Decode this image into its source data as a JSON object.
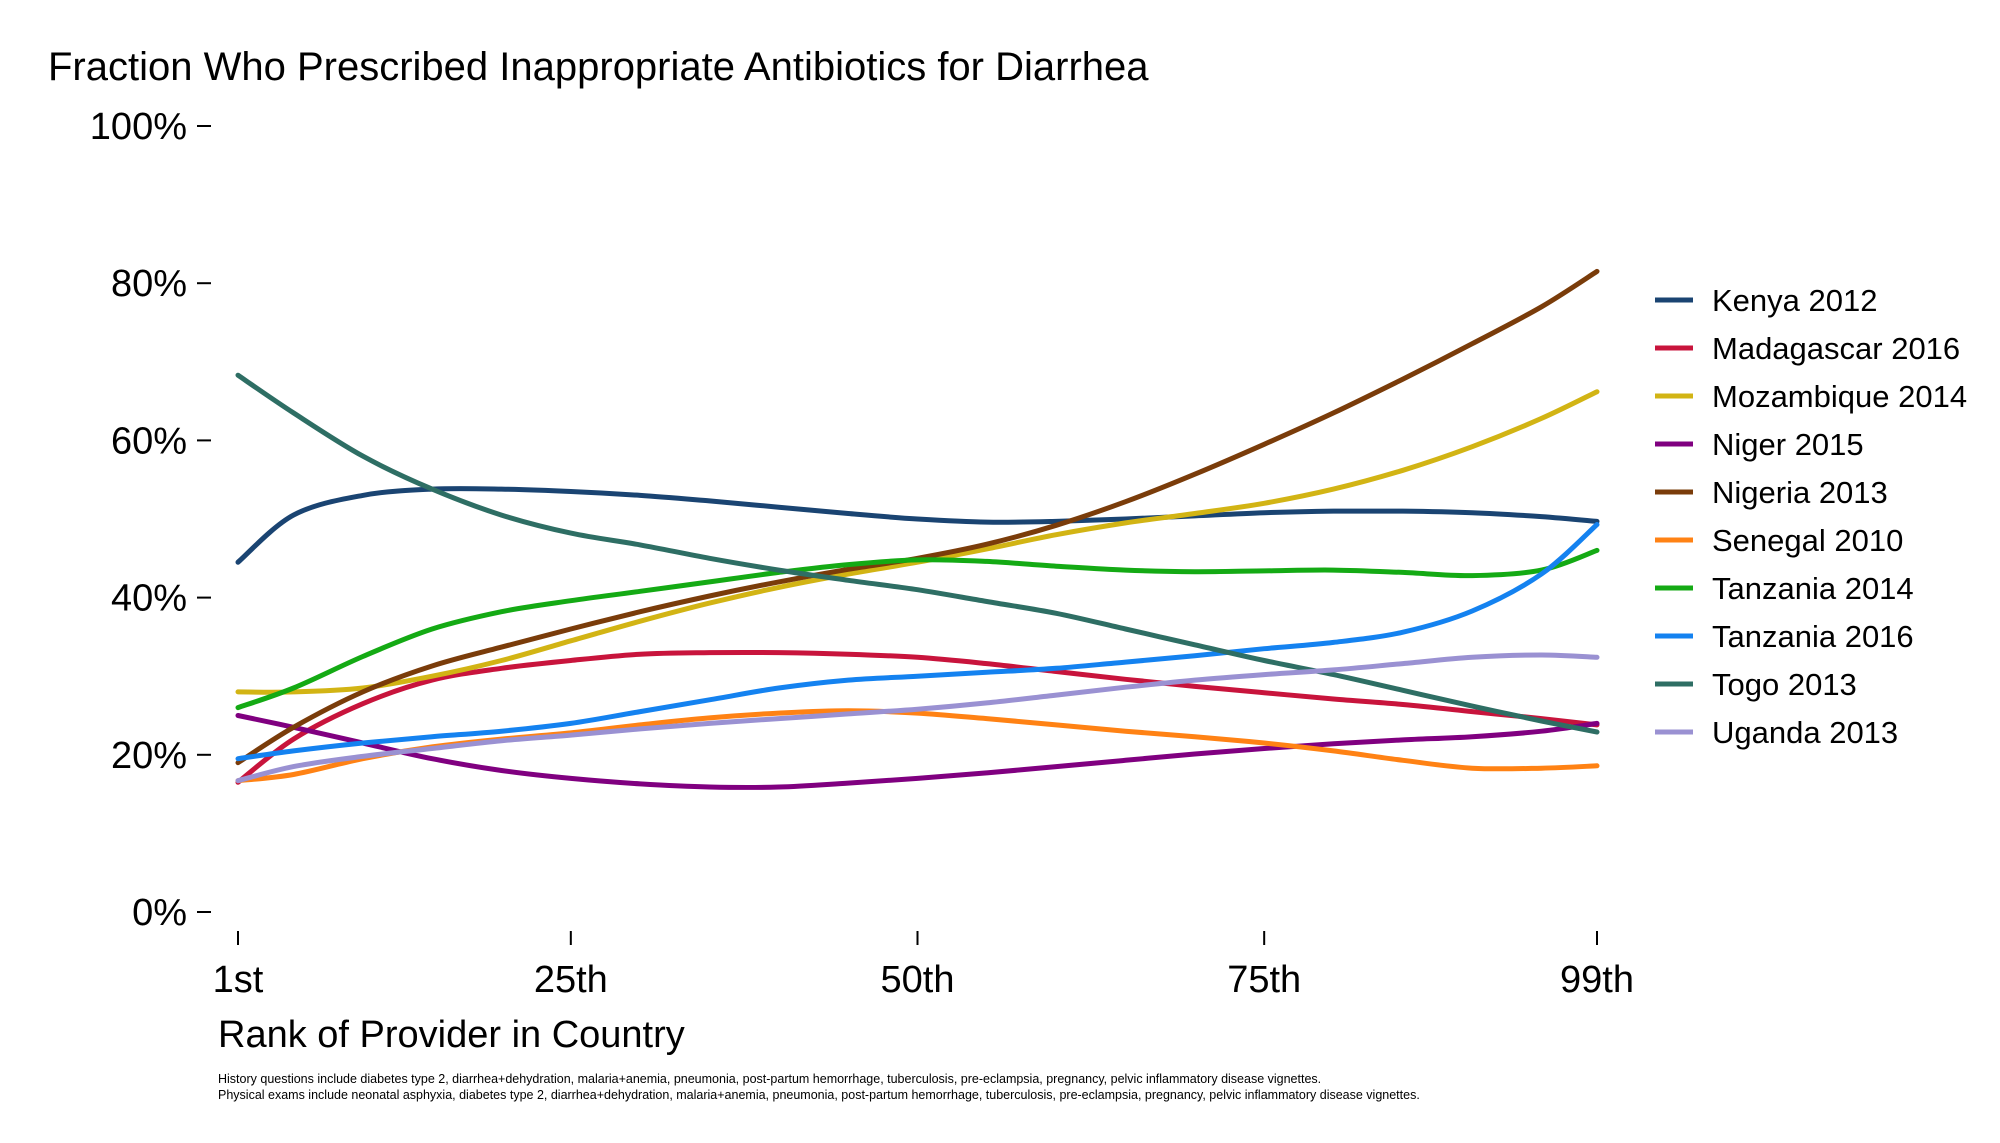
{
  "chart_data": {
    "type": "line",
    "title": "Fraction Who Prescribed Inappropriate Antibiotics for Diarrhea",
    "xlabel": "Rank of Provider in Country",
    "ylabel": "",
    "xlim": [
      1,
      99
    ],
    "ylim": [
      0,
      100
    ],
    "x_ticks": [
      {
        "value": 1,
        "label": "1st"
      },
      {
        "value": 25,
        "label": "25th"
      },
      {
        "value": 50,
        "label": "50th"
      },
      {
        "value": 75,
        "label": "75th"
      },
      {
        "value": 99,
        "label": "99th"
      }
    ],
    "y_ticks": [
      {
        "value": 0,
        "label": "0%"
      },
      {
        "value": 20,
        "label": "20%"
      },
      {
        "value": 40,
        "label": "40%"
      },
      {
        "value": 60,
        "label": "60%"
      },
      {
        "value": 80,
        "label": "80%"
      },
      {
        "value": 100,
        "label": "100%"
      }
    ],
    "grid": false,
    "legend_position": "right",
    "x": [
      1,
      5,
      10,
      15,
      20,
      25,
      30,
      35,
      40,
      45,
      50,
      55,
      60,
      65,
      70,
      75,
      80,
      85,
      90,
      95,
      99
    ],
    "series": [
      {
        "name": "Kenya 2012",
        "color": "#1a4472",
        "values": [
          44.5,
          50.5,
          53,
          53.8,
          53.8,
          53.5,
          53,
          52.3,
          51.5,
          50.7,
          50,
          49.6,
          49.7,
          50,
          50.4,
          50.8,
          51,
          51,
          50.8,
          50.3,
          49.7
        ]
      },
      {
        "name": "Madagascar 2016",
        "color": "#c8143c",
        "values": [
          16.5,
          22,
          26.5,
          29.5,
          31,
          32,
          32.8,
          33,
          33,
          32.8,
          32.4,
          31.6,
          30.6,
          29.6,
          28.7,
          27.9,
          27.1,
          26.4,
          25.5,
          24.6,
          23.8
        ]
      },
      {
        "name": "Mozambique 2014",
        "color": "#d2b414",
        "values": [
          28,
          28,
          28.5,
          30,
          32,
          34.5,
          37,
          39.3,
          41.3,
          43,
          44.5,
          46.2,
          48,
          49.5,
          50.7,
          52,
          53.8,
          56.2,
          59.2,
          62.8,
          66.2
        ]
      },
      {
        "name": "Niger 2015",
        "color": "#800080",
        "values": [
          25,
          23.5,
          21.5,
          19.5,
          18,
          17,
          16.3,
          15.9,
          15.9,
          16.4,
          17,
          17.7,
          18.5,
          19.3,
          20.1,
          20.8,
          21.4,
          21.9,
          22.3,
          23,
          24
        ]
      },
      {
        "name": "Nigeria 2013",
        "color": "#7a3c0a",
        "values": [
          19,
          23.5,
          28,
          31.3,
          33.7,
          36,
          38.2,
          40.2,
          42,
          43.6,
          45,
          46.8,
          49.2,
          52.2,
          55.7,
          59.5,
          63.5,
          67.8,
          72.3,
          77,
          81.5
        ]
      },
      {
        "name": "Senegal 2010",
        "color": "#ff8214",
        "values": [
          16.7,
          17.5,
          19.5,
          21,
          22,
          22.8,
          23.8,
          24.7,
          25.3,
          25.6,
          25.3,
          24.6,
          23.8,
          23,
          22.3,
          21.5,
          20.5,
          19.3,
          18.3,
          18.3,
          18.6
        ]
      },
      {
        "name": "Tanzania 2014",
        "color": "#14aa14",
        "values": [
          26,
          28.5,
          32.5,
          36,
          38.2,
          39.6,
          40.8,
          42,
          43.2,
          44.2,
          44.8,
          44.6,
          44,
          43.5,
          43.3,
          43.4,
          43.5,
          43.2,
          42.8,
          43.5,
          46
        ]
      },
      {
        "name": "Tanzania 2016",
        "color": "#1482f0",
        "values": [
          19.5,
          20.5,
          21.5,
          22.3,
          23,
          24,
          25.5,
          27,
          28.5,
          29.5,
          30,
          30.5,
          31,
          31.8,
          32.6,
          33.5,
          34.3,
          35.6,
          38.3,
          43,
          49.3
        ]
      },
      {
        "name": "Togo 2013",
        "color": "#2e6e64",
        "values": [
          68.3,
          63.5,
          58,
          53.8,
          50.5,
          48.2,
          46.7,
          45,
          43.5,
          42.2,
          41,
          39.5,
          38,
          36,
          34,
          32,
          30.2,
          28.2,
          26.2,
          24.3,
          22.9
        ]
      },
      {
        "name": "Uganda 2013",
        "color": "#9a91d2",
        "values": [
          16.7,
          18.5,
          19.8,
          20.8,
          21.8,
          22.5,
          23.3,
          24,
          24.6,
          25.2,
          25.8,
          26.6,
          27.6,
          28.6,
          29.5,
          30.2,
          30.8,
          31.6,
          32.4,
          32.7,
          32.4
        ]
      }
    ],
    "notes": [
      "History questions include diabetes type 2, diarrhea+dehydration, malaria+anemia, pneumonia, post-partum hemorrhage, tuberculosis, pre-eclampsia, pregnancy, pelvic inflammatory disease vignettes.",
      "Physical exams include neonatal asphyxia, diabetes type 2, diarrhea+dehydration, malaria+anemia, pneumonia, post-partum hemorrhage, tuberculosis, pre-eclampsia, pregnancy, pelvic inflammatory disease vignettes."
    ]
  }
}
